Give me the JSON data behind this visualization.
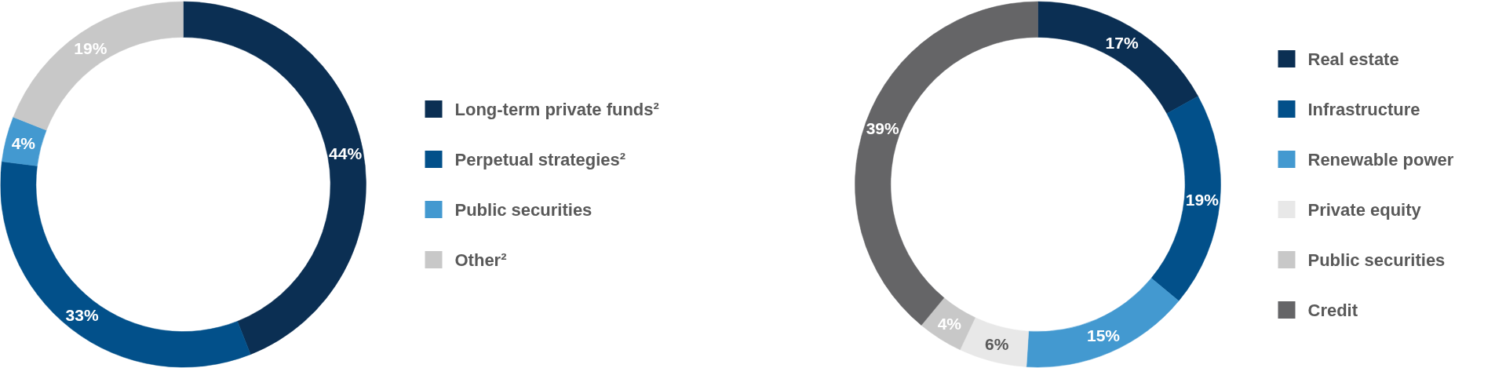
{
  "chart_data": [
    {
      "type": "donut",
      "categories": [
        "Long-term private funds²",
        "Perpetual strategies²",
        "Public securities",
        "Other²"
      ],
      "values": [
        44,
        33,
        4,
        19
      ],
      "value_labels": [
        "44%",
        "33%",
        "4%",
        "19%"
      ],
      "colors": [
        "#0b2f53",
        "#02508a",
        "#4399d0",
        "#c8c8c8"
      ],
      "legend": "right"
    },
    {
      "type": "donut",
      "categories": [
        "Real estate",
        "Infrastructure",
        "Renewable power",
        "Private equity",
        "Public securities",
        "Credit"
      ],
      "values": [
        17,
        19,
        15,
        6,
        4,
        39
      ],
      "value_labels": [
        "17%",
        "19%",
        "15%",
        "6%",
        "4%",
        "39%"
      ],
      "colors": [
        "#0b2f53",
        "#02508a",
        "#4399d0",
        "#e8e8e8",
        "#c8c8c8",
        "#656567"
      ],
      "legend": "right"
    }
  ]
}
